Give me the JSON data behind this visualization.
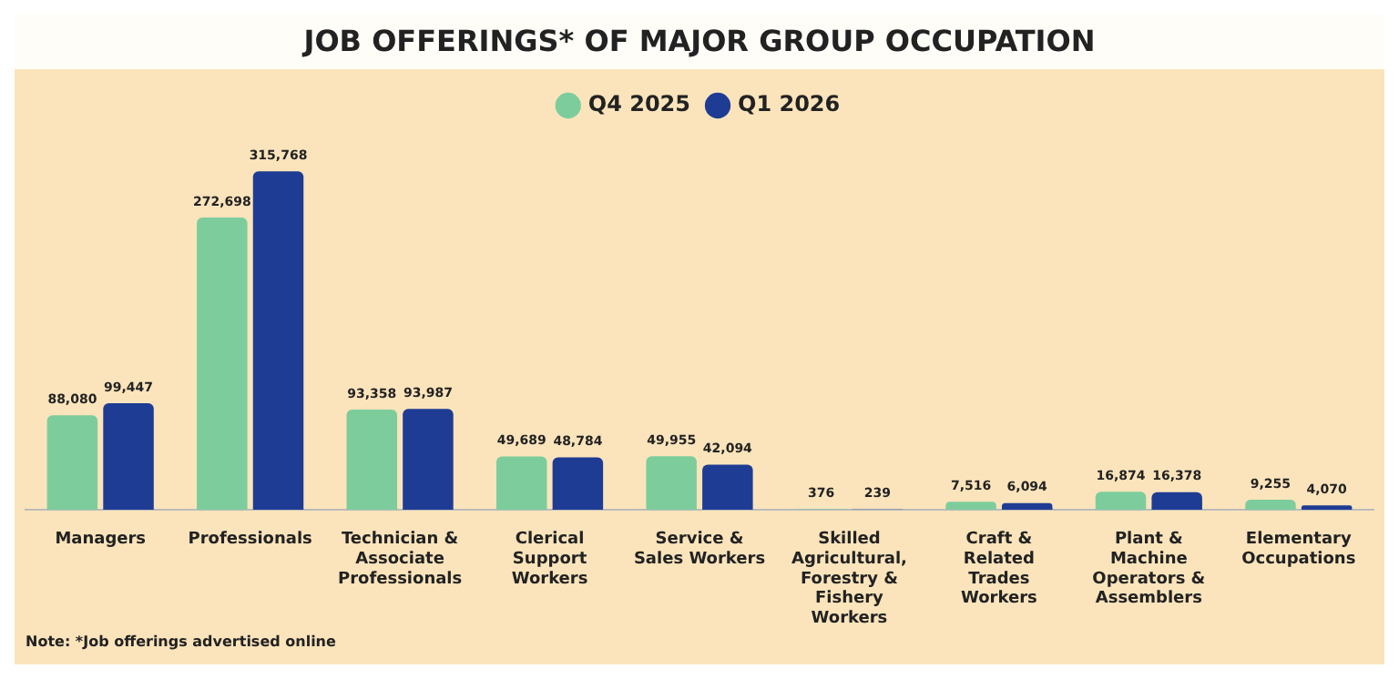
{
  "chart_data": {
    "type": "bar",
    "title": "JOB OFFERINGS* OF MAJOR GROUP OCCUPATION",
    "categories": [
      "Managers",
      "Professionals",
      "Technician & Associate Professionals",
      "Clerical Support Workers",
      "Service & Sales Workers",
      "Skilled Agricultural, Forestry & Fishery Workers",
      "Craft & Related Trades Workers",
      "Plant & Machine Operators & Assemblers",
      "Elementary Occupations"
    ],
    "series": [
      {
        "name": "Q4 2025",
        "color": "#7dcd9c",
        "values": [
          88080,
          272698,
          93358,
          49689,
          49955,
          376,
          7516,
          16874,
          9255
        ],
        "value_labels": [
          "88,080",
          "272,698",
          "93,358",
          "49,689",
          "49,955",
          "376",
          "7,516",
          "16,874",
          "9,255"
        ]
      },
      {
        "name": "Q1 2026",
        "color": "#1f3c94",
        "values": [
          99447,
          315768,
          93987,
          48784,
          42094,
          239,
          6094,
          16378,
          4070
        ],
        "value_labels": [
          "99,447",
          "315,768",
          "93,987",
          "48,784",
          "42,094",
          "239",
          "6,094",
          "16,378",
          "4,070"
        ]
      }
    ],
    "legend": "top",
    "grid": false,
    "annotations": [
      "Note: *Job offerings advertised online"
    ]
  }
}
